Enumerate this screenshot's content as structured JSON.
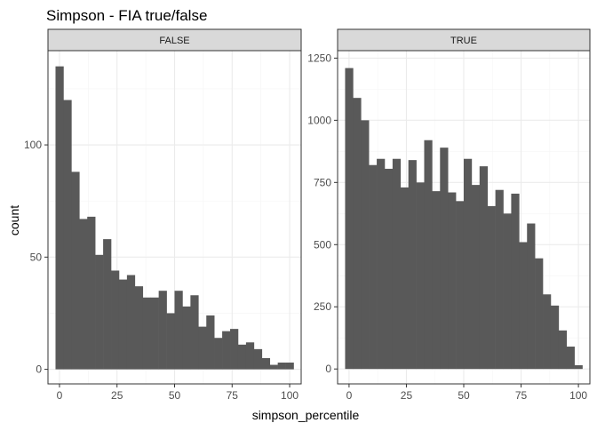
{
  "chart_data": {
    "type": "bar",
    "title": "Simpson - FIA true/false",
    "xlabel": "simpson_percentile",
    "ylabel": "count",
    "grid": true,
    "bin_width": 3.45,
    "panels": [
      {
        "strip_label": "FALSE",
        "xlim": [
          -5,
          105
        ],
        "ylim": [
          -6.5,
          142
        ],
        "x_ticks": [
          0,
          25,
          50,
          75,
          100
        ],
        "y_ticks": [
          0,
          50,
          100
        ],
        "bin_centers": [
          0,
          3.45,
          6.9,
          10.34,
          13.79,
          17.24,
          20.69,
          24.14,
          27.59,
          31.03,
          34.48,
          37.93,
          41.38,
          44.83,
          48.28,
          51.72,
          55.17,
          58.62,
          62.07,
          65.52,
          68.97,
          72.41,
          75.86,
          79.31,
          82.76,
          86.21,
          89.66,
          93.1,
          96.55,
          100
        ],
        "values": [
          135,
          120,
          88,
          67,
          68,
          51,
          58,
          44,
          40,
          42,
          37,
          32,
          32,
          35,
          25,
          35,
          28,
          33,
          19,
          24,
          14,
          17,
          18,
          11,
          12,
          9,
          5,
          2,
          3,
          3
        ]
      },
      {
        "strip_label": "TRUE",
        "xlim": [
          -5,
          105
        ],
        "ylim": [
          -60,
          1280
        ],
        "x_ticks": [
          0,
          25,
          50,
          75,
          100
        ],
        "y_ticks": [
          0,
          250,
          500,
          750,
          1000,
          1250
        ],
        "bin_centers": [
          0,
          3.45,
          6.9,
          10.34,
          13.79,
          17.24,
          20.69,
          24.14,
          27.59,
          31.03,
          34.48,
          37.93,
          41.38,
          44.83,
          48.28,
          51.72,
          55.17,
          58.62,
          62.07,
          65.52,
          68.97,
          72.41,
          75.86,
          79.31,
          82.76,
          86.21,
          89.66,
          93.1,
          96.55,
          100
        ],
        "values": [
          1210,
          1090,
          1000,
          820,
          845,
          805,
          845,
          730,
          840,
          750,
          920,
          715,
          890,
          710,
          675,
          845,
          740,
          815,
          655,
          720,
          625,
          705,
          510,
          585,
          445,
          300,
          255,
          155,
          90,
          15
        ]
      }
    ]
  },
  "colors": {
    "bar": "#595959",
    "panel_background": "#ffffff",
    "panel_border": "#333333",
    "strip_fill": "#d9d9d9",
    "grid_major": "#ebebeb",
    "grid_minor": "#f5f5f5",
    "tick_label": "#4d4d4d",
    "text": "#000000"
  }
}
